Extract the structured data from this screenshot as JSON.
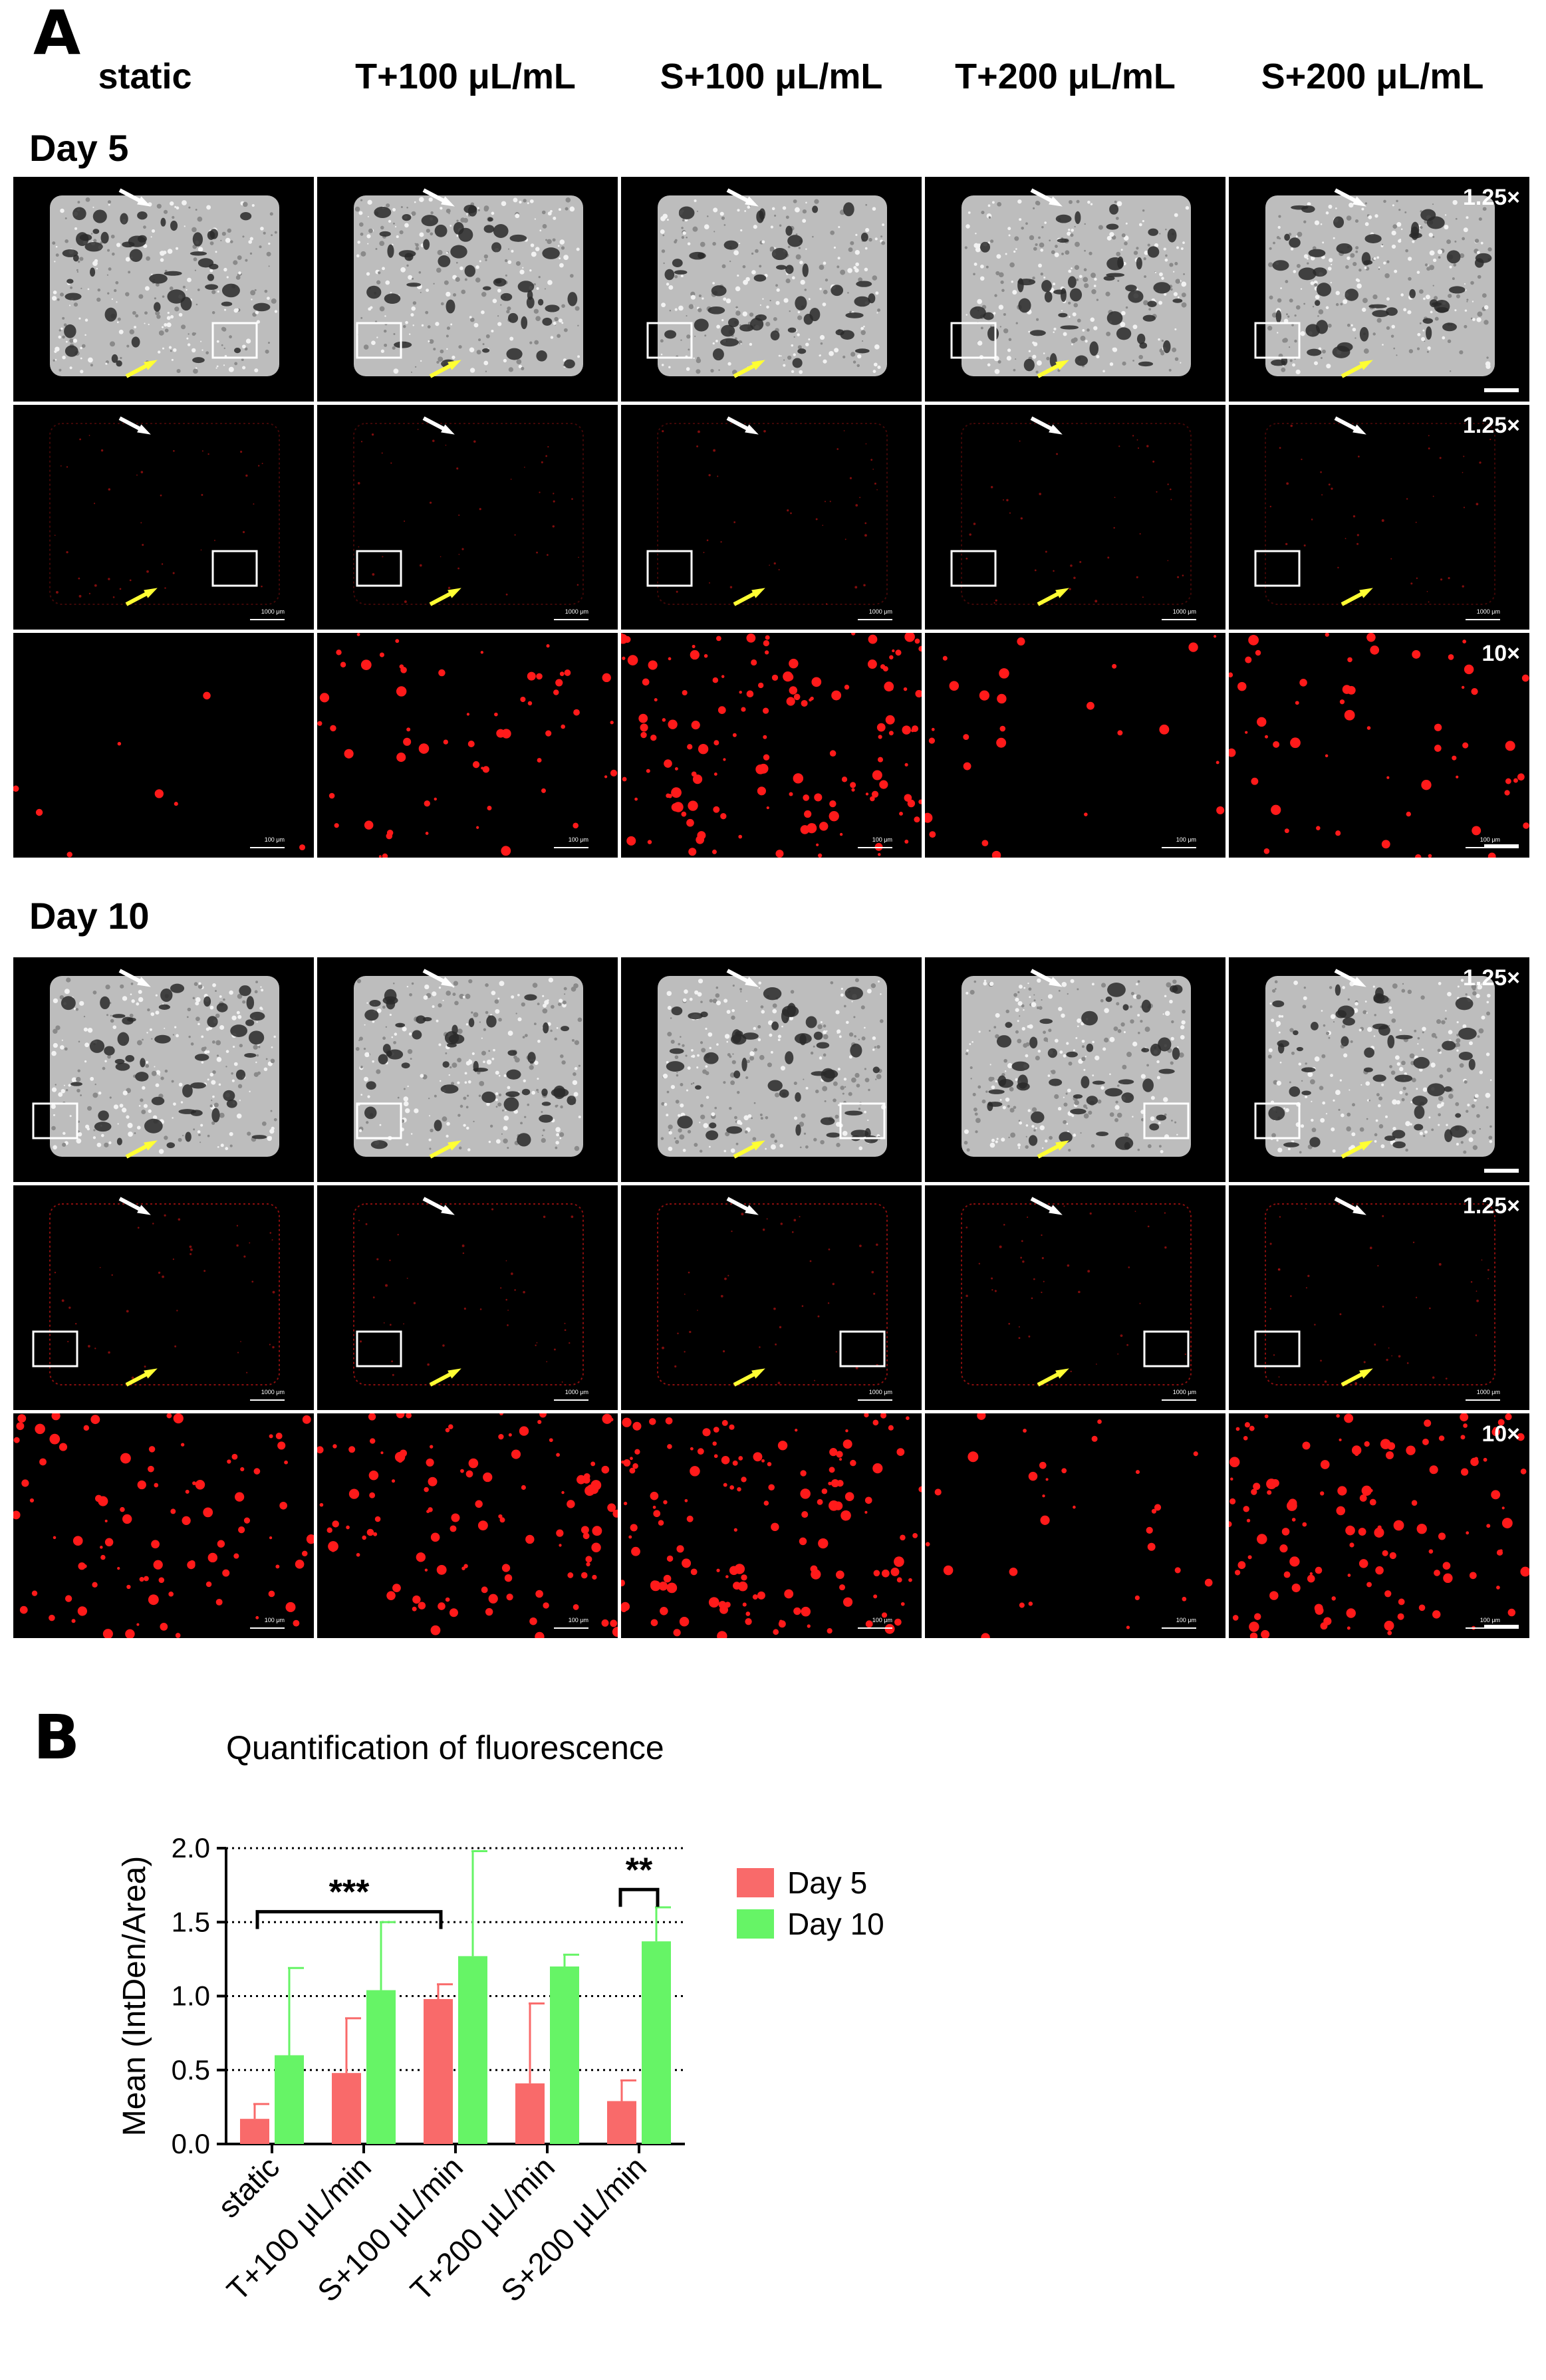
{
  "panel_a": {
    "letter": "A",
    "columns": [
      "static",
      "T+100 μL/mL",
      "S+100 μL/mL",
      "T+200 μL/mL",
      "S+200 μL/mL"
    ],
    "days": [
      {
        "label": "Day 5",
        "magnifications": [
          "1.25×",
          "1.25×",
          "10×"
        ],
        "scale_labels": [
          "1000 μm",
          "100 μm"
        ]
      },
      {
        "label": "Day 10",
        "magnifications": [
          "1.25×",
          "1.25×",
          "10×"
        ],
        "scale_labels": [
          "1000 μm",
          "100 μm"
        ]
      }
    ],
    "colors": {
      "fluorescence": "#ff1a1a",
      "white_arrow": "#ffffff",
      "yellow_arrow": "#ffff33",
      "scaffold": "#d8d8d8"
    }
  },
  "panel_b": {
    "letter": "B",
    "title": "Quantification of fluorescence"
  },
  "chart_data": {
    "type": "bar",
    "title": "Quantification of fluorescence",
    "xlabel": "",
    "ylabel": "Mean (IntDen/Area)",
    "categories": [
      "static",
      "T+100 μL/min",
      "S+100 μL/min",
      "T+200 μL/min",
      "S+200 μL/min"
    ],
    "series": [
      {
        "name": "Day 5",
        "color": "#f96a6a",
        "values": [
          0.17,
          0.48,
          0.98,
          0.41,
          0.29
        ],
        "errors": [
          0.1,
          0.37,
          0.1,
          0.54,
          0.14
        ]
      },
      {
        "name": "Day 10",
        "color": "#66f466",
        "values": [
          0.6,
          1.04,
          1.27,
          1.2,
          1.37
        ],
        "errors": [
          0.59,
          0.46,
          0.71,
          0.08,
          0.23
        ]
      }
    ],
    "ylim": [
      0,
      2.0
    ],
    "yticks": [
      "0.0",
      "0.5",
      "1.0",
      "1.5",
      "2.0"
    ],
    "grid": "dotted horizontal",
    "legend": "right",
    "significance": [
      {
        "label": "***",
        "from_category": 0,
        "to_category": 2
      },
      {
        "label": "**",
        "category": 4
      }
    ]
  }
}
